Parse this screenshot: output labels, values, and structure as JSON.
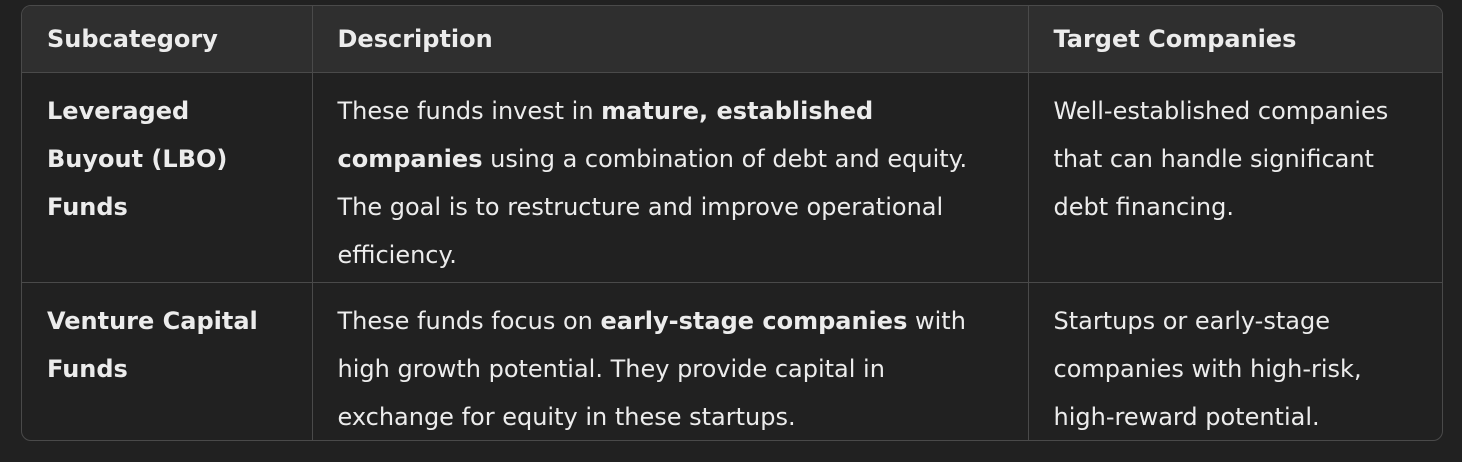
{
  "table": {
    "headers": [
      "Subcategory",
      "Description",
      "Target Companies"
    ],
    "rows": [
      {
        "subcategory": "Leveraged Buyout (LBO) Funds",
        "description": {
          "pre": "These funds invest in ",
          "bold": "mature, established companies",
          "post": " using a combination of debt and equity. The goal is to restructure and improve operational efficiency."
        },
        "target": "Well-established companies that can handle significant debt financing."
      },
      {
        "subcategory": "Venture Capital Funds",
        "description": {
          "pre": "These funds focus on ",
          "bold": "early-stage companies",
          "post": " with high growth potential. They provide capital in exchange for equity in these startups."
        },
        "target": "Startups or early-stage companies with high-risk, high-reward potential."
      }
    ]
  }
}
